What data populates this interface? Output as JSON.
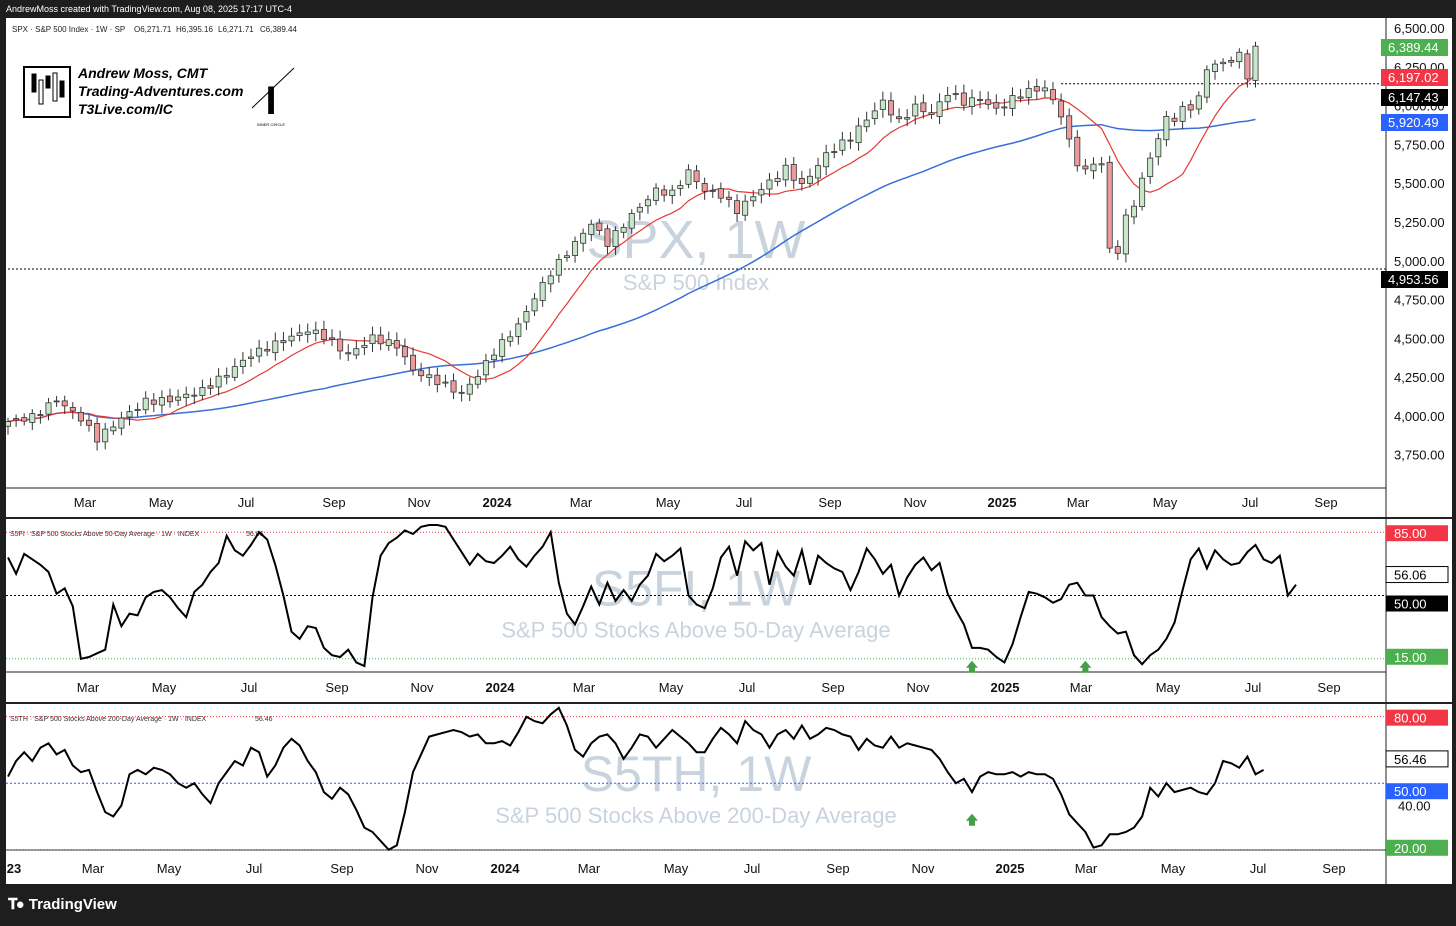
{
  "header": {
    "created_by": "AndrewMoss created with TradingView.com, Aug 08, 2025 17:17 UTC-4"
  },
  "footer": {
    "brand": "TradingView",
    "logo_icon": "tradingview-logo-icon"
  },
  "watermark_box": {
    "lines": [
      "Andrew Moss, CMT",
      "Trading-Adventures.com",
      "T3Live.com/IC"
    ],
    "icons": [
      "candlestick-logo-icon",
      "inner-circle-logo-icon"
    ],
    "circle_caption": "INNER CIRCLE"
  },
  "x_axis": {
    "price_labels": [
      "Mar",
      "May",
      "Jul",
      "Sep",
      "Nov",
      "2024",
      "Mar",
      "May",
      "Jul",
      "Sep",
      "Nov",
      "2025",
      "Mar",
      "May",
      "Jul",
      "Sep"
    ],
    "s5fi_labels": [
      "Mar",
      "May",
      "Jul",
      "Sep",
      "Nov",
      "2024",
      "Mar",
      "May",
      "Jul",
      "Sep",
      "Nov",
      "2025",
      "Mar",
      "May",
      "Jul",
      "Sep"
    ],
    "s5th_labels": [
      "23",
      "Mar",
      "May",
      "Jul",
      "Sep",
      "Nov",
      "2024",
      "Mar",
      "May",
      "Jul",
      "Sep",
      "Nov",
      "2025",
      "Mar",
      "May",
      "Jul",
      "Sep"
    ],
    "bold_labels": [
      "2024",
      "2025",
      "23"
    ]
  },
  "colors": {
    "up_candle": "#c8e6c9",
    "down_candle": "#ef9a9a",
    "wick": "#333333",
    "ma_short": "#e53935",
    "ma_long": "#3a6fd8",
    "line": "#000000",
    "box_green": "#4caf50",
    "box_red": "#f23645",
    "box_black": "#000000",
    "box_blue": "#2962ff",
    "upper_dotted": "#f23645",
    "lower_dotted": "#4caf50",
    "mid_dotted_s5fi": "#000000",
    "mid_dotted_s5th": "#2962ff",
    "watermark": "#c9d3de",
    "arrow": "#43a047"
  },
  "chart_data": [
    {
      "type": "candlestick",
      "legend": "SPX · S&P 500 Index · 1W · SP",
      "ohlc_text": {
        "o": "O6,271.71",
        "h": "H6,395.16",
        "l": "L6,271.71",
        "c": "C6,389.44"
      },
      "watermark": "SPX, 1W",
      "watermark_sub": "S&P 500 Index",
      "ylim": [
        3600,
        6500
      ],
      "y_ticks": [
        "6,500.00",
        "6,250.00",
        "6,000.00",
        "5,750.00",
        "5,500.00",
        "5,250.00",
        "5,000.00",
        "4,750.00",
        "4,500.00",
        "4,250.00",
        "4,000.00",
        "3,750.00"
      ],
      "tick_values": [
        6500,
        6250,
        6000,
        5750,
        5500,
        5250,
        5000,
        4750,
        4500,
        4250,
        4000,
        3750
      ],
      "price_boxes": [
        {
          "label": "6,389.44",
          "value": 6389.44,
          "color": "green"
        },
        {
          "label": "6,197.02",
          "value": 6197.02,
          "color": "red"
        },
        {
          "label": "6,147.43",
          "value": 6147.43,
          "color": "black"
        },
        {
          "label": "5,920.49",
          "value": 5920.49,
          "color": "blue"
        },
        {
          "label": "4,953.56",
          "value": 4953.56,
          "color": "black"
        }
      ],
      "hlines": [
        {
          "value": 6147.43,
          "from_week": 130
        },
        {
          "value": 4953.56,
          "from_week": 0
        }
      ],
      "close_anchors": [
        [
          0,
          3970
        ],
        [
          3,
          4000
        ],
        [
          6,
          4110
        ],
        [
          9,
          3990
        ],
        [
          11,
          3860
        ],
        [
          14,
          3990
        ],
        [
          17,
          4100
        ],
        [
          20,
          4110
        ],
        [
          24,
          4170
        ],
        [
          27,
          4280
        ],
        [
          30,
          4400
        ],
        [
          33,
          4470
        ],
        [
          37,
          4560
        ],
        [
          39,
          4520
        ],
        [
          42,
          4400
        ],
        [
          45,
          4510
        ],
        [
          48,
          4460
        ],
        [
          50,
          4300
        ],
        [
          53,
          4230
        ],
        [
          56,
          4150
        ],
        [
          58,
          4270
        ],
        [
          60,
          4420
        ],
        [
          63,
          4590
        ],
        [
          65,
          4770
        ],
        [
          67,
          4930
        ],
        [
          70,
          5120
        ],
        [
          72,
          5250
        ],
        [
          74,
          5120
        ],
        [
          77,
          5300
        ],
        [
          80,
          5460
        ],
        [
          82,
          5440
        ],
        [
          84,
          5580
        ],
        [
          86,
          5460
        ],
        [
          88,
          5430
        ],
        [
          90,
          5330
        ],
        [
          93,
          5470
        ],
        [
          96,
          5600
        ],
        [
          98,
          5490
        ],
        [
          101,
          5690
        ],
        [
          104,
          5800
        ],
        [
          106,
          5920
        ],
        [
          108,
          6030
        ],
        [
          110,
          5900
        ],
        [
          112,
          6000
        ],
        [
          114,
          5950
        ],
        [
          116,
          6090
        ],
        [
          118,
          6030
        ],
        [
          120,
          6050
        ],
        [
          122,
          5980
        ],
        [
          124,
          6050
        ],
        [
          126,
          6100
        ],
        [
          128,
          6120
        ],
        [
          130,
          5950
        ],
        [
          131,
          5770
        ],
        [
          132,
          5640
        ],
        [
          133,
          5580
        ],
        [
          134,
          5640
        ],
        [
          135,
          5630
        ],
        [
          136,
          5080
        ],
        [
          137,
          5070
        ],
        [
          138,
          5280
        ],
        [
          139,
          5380
        ],
        [
          140,
          5520
        ],
        [
          141,
          5680
        ],
        [
          142,
          5790
        ],
        [
          143,
          5930
        ],
        [
          144,
          5920
        ],
        [
          145,
          5980
        ],
        [
          146,
          6000
        ],
        [
          147,
          6050
        ],
        [
          148,
          6250
        ],
        [
          149,
          6270
        ],
        [
          150,
          6280
        ],
        [
          151,
          6300
        ],
        [
          152,
          6330
        ],
        [
          153,
          6200
        ],
        [
          154,
          6389
        ]
      ],
      "ma_short": {
        "period": 10
      },
      "ma_long": {
        "period": 40
      }
    },
    {
      "type": "line",
      "legend": "S5FI · S&P 500 Stocks Above 50-Day Average · 1W · INDEX",
      "last_value_text": "56.06",
      "watermark": "S5FI, 1W",
      "watermark_sub": "S&P 500 Stocks Above 50-Day Average",
      "ylim": [
        11,
        89
      ],
      "boxes": [
        {
          "label": "85.00",
          "value": 85,
          "color": "red"
        },
        {
          "label": "56.06",
          "value": 56.06,
          "color": "white"
        },
        {
          "label": "50.00",
          "value": 50,
          "color": "black"
        },
        {
          "label": "15.00",
          "value": 15,
          "color": "green"
        }
      ],
      "levels": {
        "upper": 85,
        "mid": 50,
        "lower": 15
      },
      "arrows_at_weeks": [
        119,
        133
      ],
      "values": [
        71,
        62,
        73,
        70,
        67,
        63,
        51,
        54,
        44,
        15,
        16,
        18,
        20,
        45,
        33,
        40,
        39,
        49,
        52,
        53,
        49,
        43,
        38,
        52,
        56,
        63,
        68,
        83,
        75,
        72,
        78,
        85,
        81,
        67,
        50,
        30,
        26,
        33,
        32,
        21,
        17,
        16,
        20,
        13,
        11,
        49,
        72,
        79,
        82,
        86,
        84,
        88,
        89,
        89,
        88,
        81,
        74,
        67,
        73,
        69,
        68,
        72,
        77,
        70,
        66,
        72,
        77,
        85,
        57,
        40,
        34,
        44,
        55,
        45,
        57,
        47,
        53,
        47,
        56,
        61,
        73,
        69,
        72,
        76,
        50,
        45,
        43,
        54,
        71,
        77,
        61,
        80,
        75,
        79,
        56,
        74,
        66,
        61,
        75,
        56,
        72,
        68,
        65,
        63,
        53,
        63,
        76,
        70,
        62,
        67,
        50,
        60,
        67,
        71,
        64,
        68,
        51,
        42,
        34,
        21,
        21,
        20,
        16,
        13,
        23,
        38,
        52,
        51,
        49,
        46,
        48,
        56,
        57,
        50,
        50,
        38,
        33,
        29,
        30,
        17,
        12,
        17,
        20,
        26,
        35,
        53,
        70,
        76,
        65,
        75,
        70,
        67,
        68,
        74,
        78,
        70,
        68,
        72,
        50,
        56
      ]
    },
    {
      "type": "line",
      "legend": "S5TH · S&P 500 Stocks Above 200-Day Average · 1W · INDEX",
      "last_value_text": "56.46",
      "watermark": "S5TH, 1W",
      "watermark_sub": "S&P 500 Stocks Above 200-Day Average",
      "ylim": [
        19,
        83
      ],
      "y_ticks": [
        "40.00"
      ],
      "tick_values": [
        40
      ],
      "boxes": [
        {
          "label": "80.00",
          "value": 80,
          "color": "red"
        },
        {
          "label": "56.46",
          "value": 56.46,
          "color": "white"
        },
        {
          "label": "50.00",
          "value": 50,
          "color": "blue"
        },
        {
          "label": "20.00",
          "value": 20,
          "color": "green"
        }
      ],
      "levels": {
        "upper": 80,
        "mid": 50,
        "lower": 20
      },
      "arrows_at_weeks": [
        119
      ],
      "values": [
        53,
        60,
        64,
        60,
        66,
        68,
        63,
        65,
        58,
        55,
        56,
        46,
        37,
        35,
        40,
        54,
        56,
        54,
        57,
        56,
        54,
        50,
        48,
        50,
        45,
        41,
        50,
        55,
        60,
        58,
        66,
        64,
        53,
        58,
        66,
        70,
        67,
        60,
        55,
        46,
        43,
        48,
        45,
        38,
        30,
        28,
        24,
        20,
        22,
        37,
        55,
        63,
        71,
        72,
        73,
        74,
        73,
        71,
        72,
        68,
        68,
        69,
        67,
        73,
        80,
        78,
        77,
        81,
        84,
        76,
        65,
        62,
        68,
        71,
        72,
        68,
        61,
        66,
        72,
        71,
        66,
        70,
        74,
        71,
        68,
        64,
        64,
        70,
        75,
        72,
        68,
        78,
        74,
        72,
        66,
        72,
        74,
        70,
        76,
        70,
        72,
        75,
        74,
        72,
        71,
        65,
        70,
        67,
        66,
        71,
        66,
        68,
        67,
        66,
        65,
        61,
        55,
        50,
        52,
        46,
        53,
        55,
        54,
        54,
        55,
        53,
        55,
        54,
        54,
        52,
        45,
        36,
        32,
        28,
        21,
        22,
        27,
        27,
        28,
        30,
        35,
        48,
        44,
        50,
        46,
        47,
        48,
        46,
        45,
        50,
        60,
        59,
        57,
        62,
        54,
        56
      ]
    }
  ]
}
